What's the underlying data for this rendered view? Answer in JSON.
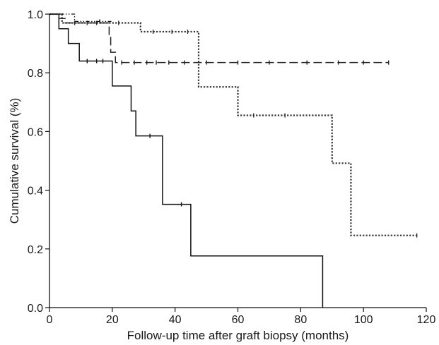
{
  "chart_data": {
    "type": "line",
    "chart_style": "kaplan-meier step survival curves",
    "xlabel": "Follow-up time after graft biopsy (months)",
    "ylabel": "Cumulative survival (%)",
    "xlim": [
      0,
      120
    ],
    "ylim": [
      0,
      1.0
    ],
    "x_ticks": [
      0,
      20,
      40,
      60,
      80,
      100,
      120
    ],
    "y_ticks": [
      0.0,
      0.2,
      0.4,
      0.6,
      0.8,
      1.0
    ],
    "x_tick_labels": [
      "0",
      "20",
      "40",
      "60",
      "80",
      "100",
      "120"
    ],
    "y_tick_labels": [
      "0.0",
      "0.2",
      "0.4",
      "0.6",
      "0.8",
      "1.0"
    ],
    "grid": false,
    "series": [
      {
        "line_style": "solid",
        "color": "#111111",
        "steps": [
          [
            0,
            1.0
          ],
          [
            3,
            0.95
          ],
          [
            6,
            0.9
          ],
          [
            9.5,
            0.84
          ],
          [
            20,
            0.755
          ],
          [
            26,
            0.67
          ],
          [
            27.5,
            0.585
          ],
          [
            36,
            0.352
          ],
          [
            45,
            0.176
          ],
          [
            87,
            0.0
          ]
        ],
        "end_x": 87,
        "censored": [
          [
            12,
            0.84
          ],
          [
            15,
            0.84
          ],
          [
            17,
            0.84
          ],
          [
            32,
            0.585
          ],
          [
            42,
            0.352
          ]
        ]
      },
      {
        "line_style": "dashed",
        "color": "#222222",
        "steps": [
          [
            0,
            1.0
          ],
          [
            3,
            0.985
          ],
          [
            5,
            0.97
          ],
          [
            19,
            0.925
          ],
          [
            19.5,
            0.87
          ],
          [
            21,
            0.835
          ]
        ],
        "end_x": 108,
        "censored": [
          [
            8,
            0.97
          ],
          [
            12,
            0.97
          ],
          [
            15,
            0.97
          ],
          [
            23,
            0.835
          ],
          [
            27,
            0.835
          ],
          [
            31,
            0.835
          ],
          [
            34,
            0.835
          ],
          [
            38,
            0.835
          ],
          [
            43,
            0.835
          ],
          [
            50,
            0.835
          ],
          [
            60,
            0.835
          ],
          [
            70,
            0.835
          ],
          [
            82,
            0.835
          ],
          [
            92,
            0.835
          ],
          [
            100,
            0.835
          ],
          [
            108,
            0.835
          ]
        ]
      },
      {
        "line_style": "dotted",
        "color": "#333333",
        "steps": [
          [
            0,
            1.0
          ],
          [
            4,
            0.97
          ],
          [
            29,
            0.94
          ],
          [
            47.5,
            0.752
          ],
          [
            60,
            0.655
          ],
          [
            90,
            0.492
          ],
          [
            96,
            0.246
          ]
        ],
        "end_x": 117,
        "censored": [
          [
            12,
            0.97
          ],
          [
            22,
            0.97
          ],
          [
            33,
            0.94
          ],
          [
            39,
            0.94
          ],
          [
            44,
            0.94
          ],
          [
            65,
            0.655
          ],
          [
            75,
            0.655
          ],
          [
            117,
            0.246
          ]
        ]
      },
      {
        "line_style": "dash-dot-dot",
        "color": "#111111",
        "steps": [
          [
            0,
            1.0
          ],
          [
            8,
            0.975
          ]
        ],
        "end_x": 20,
        "censored": [
          [
            16,
            0.975
          ]
        ]
      }
    ]
  }
}
